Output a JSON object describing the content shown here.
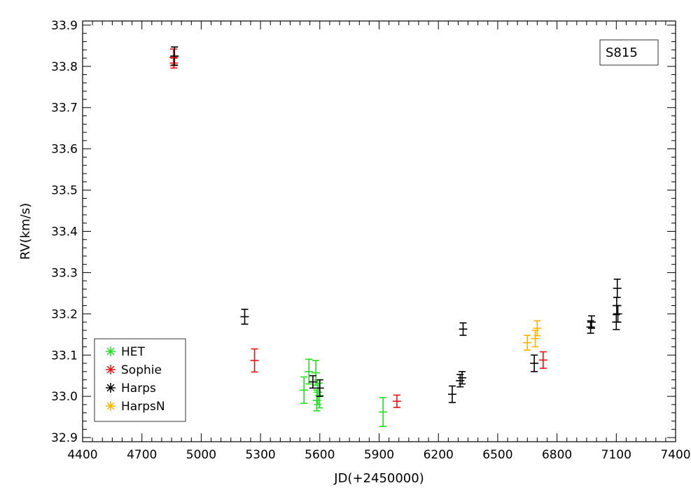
{
  "chart_data": {
    "type": "scatter",
    "title": "",
    "xlabel": "JD(+2450000)",
    "ylabel": "RV(km/s)",
    "xlim": [
      4400,
      7400
    ],
    "ylim": [
      32.89,
      33.91
    ],
    "x_ticks": [
      4400,
      4700,
      5000,
      5300,
      5600,
      5900,
      6200,
      6500,
      6800,
      7100,
      7400
    ],
    "x_tick_labels": [
      "4400",
      "4700",
      "5000",
      "5300",
      "5600",
      "5900",
      "6200",
      "6500",
      "6800",
      "7100",
      "7400"
    ],
    "y_ticks": [
      32.9,
      33.0,
      33.1,
      33.2,
      33.3,
      33.4,
      33.5,
      33.6,
      33.7,
      33.8,
      33.9
    ],
    "y_tick_labels": [
      "32.9",
      "33.0",
      "33.1",
      "33.2",
      "33.3",
      "33.4",
      "33.5",
      "33.6",
      "33.7",
      "33.8",
      "33.9"
    ],
    "annotation": "S815",
    "legend_position": "bottom-left",
    "grid": false,
    "series": [
      {
        "name": "HET",
        "color": "#22e022",
        "points": [
          {
            "x": 5520,
            "y": 33.015,
            "err": 0.032
          },
          {
            "x": 5545,
            "y": 33.06,
            "err": 0.03
          },
          {
            "x": 5580,
            "y": 33.057,
            "err": 0.03
          },
          {
            "x": 5585,
            "y": 32.99,
            "err": 0.025
          },
          {
            "x": 5590,
            "y": 33.01,
            "err": 0.03
          },
          {
            "x": 5598,
            "y": 33.002,
            "err": 0.03
          },
          {
            "x": 5920,
            "y": 32.962,
            "err": 0.035
          }
        ]
      },
      {
        "name": "Sophie",
        "color": "#ee1111",
        "points": [
          {
            "x": 4860,
            "y": 33.822,
            "err": 0.02
          },
          {
            "x": 4862,
            "y": 33.808,
            "err": 0.012
          },
          {
            "x": 5270,
            "y": 33.087,
            "err": 0.028
          },
          {
            "x": 5990,
            "y": 32.988,
            "err": 0.015
          },
          {
            "x": 6730,
            "y": 33.088,
            "err": 0.02
          }
        ]
      },
      {
        "name": "Harps",
        "color": "#000000",
        "points": [
          {
            "x": 4865,
            "y": 33.825,
            "err": 0.022
          },
          {
            "x": 5220,
            "y": 33.193,
            "err": 0.018
          },
          {
            "x": 5565,
            "y": 33.035,
            "err": 0.015
          },
          {
            "x": 5600,
            "y": 33.02,
            "err": 0.02
          },
          {
            "x": 6270,
            "y": 33.005,
            "err": 0.02
          },
          {
            "x": 6310,
            "y": 33.038,
            "err": 0.015
          },
          {
            "x": 6320,
            "y": 33.045,
            "err": 0.015
          },
          {
            "x": 6325,
            "y": 33.163,
            "err": 0.015
          },
          {
            "x": 6685,
            "y": 33.08,
            "err": 0.02
          },
          {
            "x": 6970,
            "y": 33.168,
            "err": 0.015
          },
          {
            "x": 6975,
            "y": 33.18,
            "err": 0.015
          },
          {
            "x": 7100,
            "y": 33.18,
            "err": 0.018
          },
          {
            "x": 7102,
            "y": 33.22,
            "err": 0.02
          },
          {
            "x": 7105,
            "y": 33.262,
            "err": 0.022
          },
          {
            "x": 7108,
            "y": 33.2,
            "err": 0.02
          }
        ]
      },
      {
        "name": "HarpsN",
        "color": "#ffb300",
        "points": [
          {
            "x": 6650,
            "y": 33.13,
            "err": 0.018
          },
          {
            "x": 6690,
            "y": 33.14,
            "err": 0.02
          },
          {
            "x": 6700,
            "y": 33.165,
            "err": 0.018
          }
        ]
      }
    ]
  }
}
